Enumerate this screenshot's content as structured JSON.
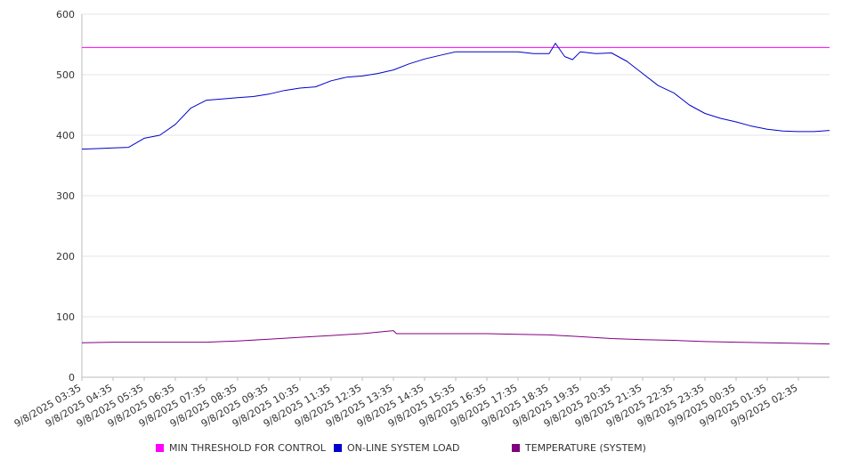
{
  "chart_data": {
    "type": "line",
    "title": "",
    "xlabel": "",
    "ylabel": "",
    "ylim": [
      0,
      600
    ],
    "yticks": [
      0,
      100,
      200,
      300,
      400,
      500,
      600
    ],
    "grid": true,
    "legend_position": "bottom",
    "x_tick_labels": [
      "9/8/2025 03:35",
      "9/8/2025 04:35",
      "9/8/2025 05:35",
      "9/8/2025 06:35",
      "9/8/2025 07:35",
      "9/8/2025 08:35",
      "9/8/2025 09:35",
      "9/8/2025 10:35",
      "9/8/2025 11:35",
      "9/8/2025 12:35",
      "9/8/2025 13:35",
      "9/8/2025 14:35",
      "9/8/2025 15:35",
      "9/8/2025 16:35",
      "9/8/2025 17:35",
      "9/8/2025 18:35",
      "9/8/2025 19:35",
      "9/8/2025 20:35",
      "9/8/2025 21:35",
      "9/8/2025 22:35",
      "9/8/2025 23:35",
      "9/9/2025 00:35",
      "9/9/2025 01:35",
      "9/9/2025 02:35"
    ],
    "x_range_hours": [
      0,
      24
    ],
    "series": [
      {
        "name": "MIN THRESHOLD FOR CONTROL",
        "color": "#ff00ff",
        "x": [
          0,
          24
        ],
        "values": [
          545,
          545
        ]
      },
      {
        "name": "ON-LINE SYSTEM LOAD",
        "color": "#0000cc",
        "x": [
          0,
          0.5,
          1,
          1.5,
          2,
          2.5,
          3,
          3.5,
          4,
          4.5,
          5,
          5.5,
          6,
          6.5,
          7,
          7.5,
          8,
          8.5,
          9,
          9.5,
          10,
          10.5,
          11,
          11.5,
          12,
          12.5,
          13,
          13.5,
          14,
          14.5,
          15,
          15.2,
          15.5,
          15.75,
          16,
          16.5,
          17,
          17.5,
          18,
          18.5,
          19,
          19.5,
          20,
          20.5,
          21,
          21.5,
          22,
          22.5,
          23,
          23.5,
          24
        ],
        "values": [
          377,
          378,
          379,
          380,
          395,
          400,
          418,
          445,
          458,
          460,
          462,
          464,
          468,
          474,
          478,
          480,
          490,
          496,
          498,
          502,
          508,
          518,
          526,
          532,
          538,
          538,
          538,
          538,
          538,
          535,
          535,
          552,
          530,
          525,
          538,
          535,
          536,
          522,
          502,
          482,
          470,
          450,
          436,
          428,
          422,
          415,
          410,
          407,
          406,
          406,
          408
        ]
      },
      {
        "name": "TEMPERATURE (SYSTEM)",
        "color": "#800080",
        "x": [
          0,
          1,
          2,
          3,
          4,
          5,
          6,
          7,
          8,
          9,
          10,
          10.1,
          10.5,
          11,
          12,
          13,
          14,
          15,
          16,
          17,
          18,
          19,
          20,
          21,
          22,
          23,
          24
        ],
        "values": [
          57,
          58,
          58,
          58,
          58,
          60,
          63,
          66,
          69,
          72,
          77,
          72,
          72,
          72,
          72,
          72,
          71,
          70,
          67,
          64,
          62,
          61,
          59,
          58,
          57,
          56,
          55
        ]
      }
    ]
  }
}
